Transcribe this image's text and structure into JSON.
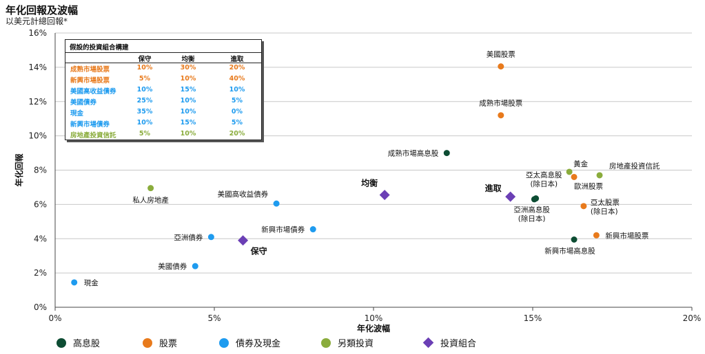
{
  "header": {
    "title": "年化回報及波幅",
    "subtitle": "以美元計總回報*"
  },
  "colors": {
    "high_dividend": "#0d4d33",
    "equity": "#e87a1c",
    "bonds_cash": "#1e9bef",
    "alternative": "#8aac3c",
    "portfolio": "#6b3fb5",
    "grid": "#c8c8c8"
  },
  "chart_data": {
    "type": "scatter",
    "xlabel": "年化波幅",
    "ylabel": "年化回報",
    "xlim": [
      0,
      20
    ],
    "ylim": [
      0,
      16
    ],
    "xticks": [
      0,
      5,
      10,
      15,
      20
    ],
    "xtick_labels": [
      "0%",
      "5%",
      "10%",
      "15%",
      "20%"
    ],
    "yticks": [
      0,
      2,
      4,
      6,
      8,
      10,
      12,
      14,
      16
    ],
    "ytick_labels": [
      "0%",
      "2%",
      "4%",
      "6%",
      "8%",
      "10%",
      "12%",
      "14%",
      "16%"
    ],
    "grid": "horizontal",
    "legend_position": "bottom",
    "series": [
      {
        "name": "高息股",
        "color": "#0d4d33",
        "marker": "circle",
        "points": [
          {
            "label": "成熟市場高息股",
            "x": 12.3,
            "y": 9.0
          },
          {
            "label": "亞太高息股\n(除日本)",
            "x": 15.05,
            "y": 6.3
          },
          {
            "label": "亞洲高息股\n(除日本)",
            "x": 15.1,
            "y": 6.35
          },
          {
            "label": "新興市場高息股",
            "x": 16.3,
            "y": 3.95
          }
        ]
      },
      {
        "name": "股票",
        "color": "#e87a1c",
        "marker": "circle",
        "points": [
          {
            "label": "美國股票",
            "x": 14.0,
            "y": 14.05
          },
          {
            "label": "成熟市場股票",
            "x": 14.0,
            "y": 11.2
          },
          {
            "label": "歐洲股票",
            "x": 16.3,
            "y": 7.6
          },
          {
            "label": "亞太股票\n(除日本)",
            "x": 16.6,
            "y": 5.9
          },
          {
            "label": "新興市場股票",
            "x": 17.0,
            "y": 4.2
          }
        ]
      },
      {
        "name": "債券及現金",
        "color": "#1e9bef",
        "marker": "circle",
        "points": [
          {
            "label": "現金",
            "x": 0.6,
            "y": 1.45
          },
          {
            "label": "美國債券",
            "x": 4.4,
            "y": 2.4
          },
          {
            "label": "亞洲債券",
            "x": 4.9,
            "y": 4.1
          },
          {
            "label": "美國高收益債券",
            "x": 6.95,
            "y": 6.05
          },
          {
            "label": "新興市場債券",
            "x": 8.1,
            "y": 4.55
          }
        ]
      },
      {
        "name": "另類投資",
        "color": "#8aac3c",
        "marker": "circle",
        "points": [
          {
            "label": "私人房地產",
            "x": 3.0,
            "y": 6.95
          },
          {
            "label": "黃金",
            "x": 16.15,
            "y": 7.9
          },
          {
            "label": "房地產投資信託",
            "x": 17.1,
            "y": 7.7
          }
        ]
      },
      {
        "name": "投資組合",
        "color": "#6b3fb5",
        "marker": "diamond",
        "points": [
          {
            "label": "保守",
            "x": 5.9,
            "y": 3.9
          },
          {
            "label": "均衡",
            "x": 10.35,
            "y": 6.55
          },
          {
            "label": "進取",
            "x": 14.3,
            "y": 6.45
          }
        ]
      }
    ]
  },
  "allocation_table": {
    "title": "假設的投資組合構建",
    "headers": [
      "",
      "保守",
      "均衡",
      "進取"
    ],
    "rows": [
      {
        "asset": "成熟市場股票",
        "color": "#e87a1c",
        "values": [
          "10%",
          "30%",
          "20%"
        ]
      },
      {
        "asset": "新興市場股票",
        "color": "#e87a1c",
        "values": [
          "5%",
          "10%",
          "40%"
        ]
      },
      {
        "asset": "美國高收益債券",
        "color": "#1e9bef",
        "values": [
          "10%",
          "15%",
          "10%"
        ]
      },
      {
        "asset": "美國債券",
        "color": "#1e9bef",
        "values": [
          "25%",
          "10%",
          "5%"
        ]
      },
      {
        "asset": "現金",
        "color": "#1e9bef",
        "values": [
          "35%",
          "10%",
          "0%"
        ]
      },
      {
        "asset": "新興市場債券",
        "color": "#1e9bef",
        "values": [
          "10%",
          "15%",
          "5%"
        ]
      },
      {
        "asset": "房地產投資信託",
        "color": "#8aac3c",
        "values": [
          "5%",
          "10%",
          "20%"
        ]
      }
    ]
  }
}
